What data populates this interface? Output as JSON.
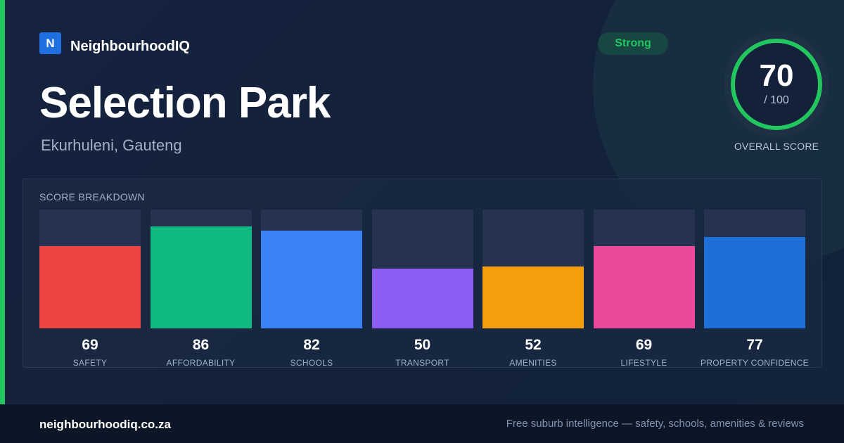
{
  "brand": {
    "logo_letter": "N",
    "name": "NeighbourhoodIQ"
  },
  "suburb": {
    "name": "Selection Park",
    "location": "Ekurhuleni, Gauteng"
  },
  "badge": {
    "label": "Strong",
    "color": "#22c55e"
  },
  "overall": {
    "score": "70",
    "max_label": "/ 100",
    "fraction": 0.7,
    "label": "OVERALL SCORE",
    "ring_color": "#22c55e"
  },
  "breakdown": {
    "title": "SCORE BREAKDOWN",
    "items": [
      {
        "label": "SAFETY",
        "value": "69",
        "score": 69,
        "color": "#ef4444"
      },
      {
        "label": "AFFORDABILITY",
        "value": "86",
        "score": 86,
        "color": "#10b981"
      },
      {
        "label": "SCHOOLS",
        "value": "82",
        "score": 82,
        "color": "#3b82f6"
      },
      {
        "label": "TRANSPORT",
        "value": "50",
        "score": 50,
        "color": "#8b5cf6"
      },
      {
        "label": "AMENITIES",
        "value": "52",
        "score": 52,
        "color": "#f59e0b"
      },
      {
        "label": "LIFESTYLE",
        "value": "69",
        "score": 69,
        "color": "#ec4899"
      },
      {
        "label": "PROPERTY CONFIDENCE",
        "value": "77",
        "score": 77,
        "color": "#1f6fd8"
      }
    ]
  },
  "footer": {
    "url": "neighbourhoodiq.co.za",
    "tagline": "Free suburb intelligence — safety, schools, amenities & reviews"
  }
}
